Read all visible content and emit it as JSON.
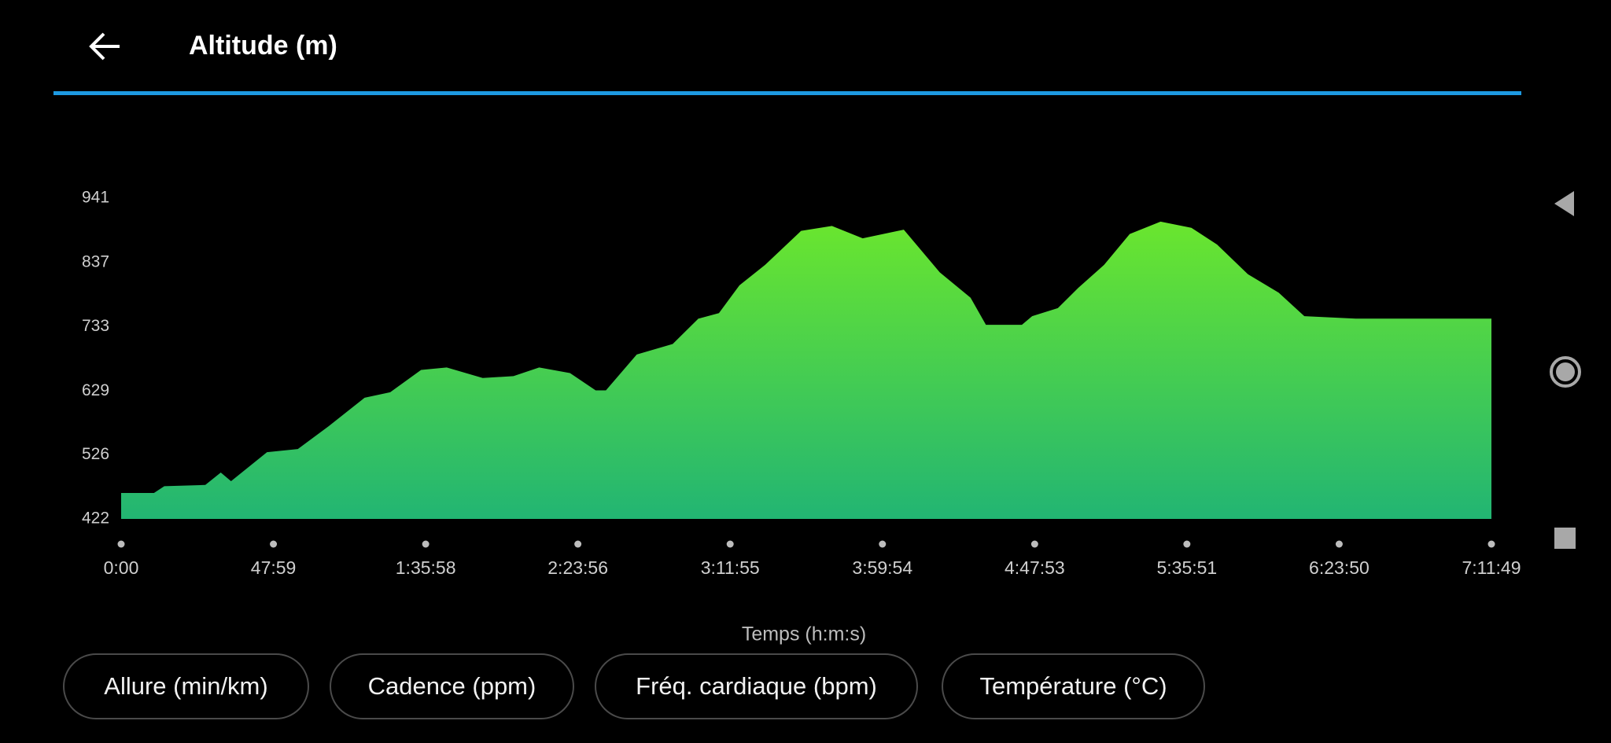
{
  "chart_data": {
    "type": "area",
    "title": "Altitude (m)",
    "x_label": "Temps (h:m:s)",
    "x": [
      0,
      621,
      816,
      1592,
      1884,
      2078,
      2758,
      3341,
      3923,
      4603,
      5088,
      5671,
      6156,
      6836,
      7418,
      7904,
      8487,
      8972,
      9166,
      9749,
      10429,
      10914,
      11303,
      11691,
      12176,
      12856,
      13439,
      14021,
      14798,
      15478,
      16060,
      16351,
      17031,
      17225,
      17711,
      18099,
      18585,
      19070,
      19653,
      20236,
      20721,
      21304,
      21887,
      22372,
      23343,
      25909
    ],
    "series": [
      {
        "name": "Altitude",
        "color": "#6ae62e",
        "values": [
          464,
          464,
          475,
          477,
          497,
          483,
          530,
          535,
          572,
          618,
          627,
          663,
          667,
          650,
          653,
          667,
          658,
          630,
          630,
          688,
          705,
          746,
          755,
          800,
          833,
          888,
          896,
          876,
          890,
          821,
          780,
          736,
          736,
          750,
          763,
          796,
          833,
          883,
          903,
          893,
          866,
          818,
          788,
          750,
          746,
          746
        ]
      }
    ],
    "xlim": [
      0,
      25909
    ],
    "xticks": [
      {
        "value": 0,
        "label": "0:00"
      },
      {
        "value": 2879,
        "label": "47:59"
      },
      {
        "value": 5758,
        "label": "1:35:58"
      },
      {
        "value": 8636,
        "label": "2:23:56"
      },
      {
        "value": 11515,
        "label": "3:11:55"
      },
      {
        "value": 14394,
        "label": "3:59:54"
      },
      {
        "value": 17273,
        "label": "4:47:53"
      },
      {
        "value": 20151,
        "label": "5:35:51"
      },
      {
        "value": 23030,
        "label": "6:23:50"
      },
      {
        "value": 25909,
        "label": "7:11:49"
      }
    ],
    "ylim": [
      422,
      941
    ],
    "yticks": [
      422,
      526,
      629,
      733,
      837,
      941
    ],
    "grid": false
  },
  "buttons": [
    "Allure (min/km)",
    "Cadence (ppm)",
    "Fréq. cardiaque (bpm)",
    "Température (°C)"
  ]
}
